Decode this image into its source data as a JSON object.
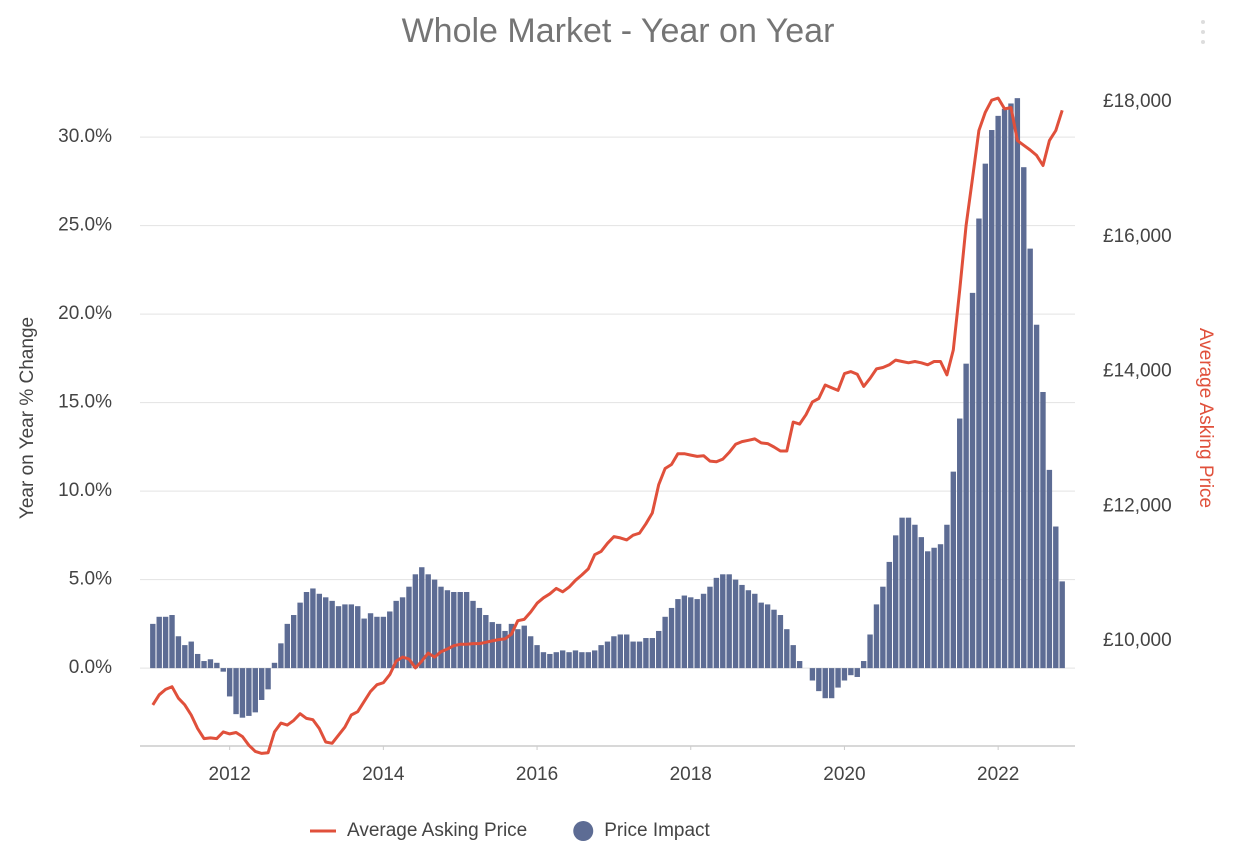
{
  "chart_data": {
    "type": "bar_line",
    "title": "Whole Market - Year on Year",
    "y_label": "Year on Year % Change",
    "y2_label": "Average Asking Price",
    "x": [
      "2011-01",
      "2011-02",
      "2011-03",
      "2011-04",
      "2011-05",
      "2011-06",
      "2011-07",
      "2011-08",
      "2011-09",
      "2011-10",
      "2011-11",
      "2011-12",
      "2012-01",
      "2012-02",
      "2012-03",
      "2012-04",
      "2012-05",
      "2012-06",
      "2012-07",
      "2012-08",
      "2012-09",
      "2012-10",
      "2012-11",
      "2012-12",
      "2013-01",
      "2013-02",
      "2013-03",
      "2013-04",
      "2013-05",
      "2013-06",
      "2013-07",
      "2013-08",
      "2013-09",
      "2013-10",
      "2013-11",
      "2013-12",
      "2014-01",
      "2014-02",
      "2014-03",
      "2014-04",
      "2014-05",
      "2014-06",
      "2014-07",
      "2014-08",
      "2014-09",
      "2014-10",
      "2014-11",
      "2014-12",
      "2015-01",
      "2015-02",
      "2015-03",
      "2015-04",
      "2015-05",
      "2015-06",
      "2015-07",
      "2015-08",
      "2015-09",
      "2015-10",
      "2015-11",
      "2015-12",
      "2016-01",
      "2016-02",
      "2016-03",
      "2016-04",
      "2016-05",
      "2016-06",
      "2016-07",
      "2016-08",
      "2016-09",
      "2016-10",
      "2016-11",
      "2016-12",
      "2017-01",
      "2017-02",
      "2017-03",
      "2017-04",
      "2017-05",
      "2017-06",
      "2017-07",
      "2017-08",
      "2017-09",
      "2017-10",
      "2017-11",
      "2017-12",
      "2018-01",
      "2018-02",
      "2018-03",
      "2018-04",
      "2018-05",
      "2018-06",
      "2018-07",
      "2018-08",
      "2018-09",
      "2018-10",
      "2018-11",
      "2018-12",
      "2019-01",
      "2019-02",
      "2019-03",
      "2019-04",
      "2019-05",
      "2019-06",
      "2019-07",
      "2019-08",
      "2019-09",
      "2019-10",
      "2019-11",
      "2019-12",
      "2020-01",
      "2020-02",
      "2020-03",
      "2020-04",
      "2020-05",
      "2020-06",
      "2020-07",
      "2020-08",
      "2020-09",
      "2020-10",
      "2020-11",
      "2020-12",
      "2021-01",
      "2021-02",
      "2021-03",
      "2021-04",
      "2021-05",
      "2021-06",
      "2021-07",
      "2021-08",
      "2021-09",
      "2021-10",
      "2021-11",
      "2021-12",
      "2022-01",
      "2022-02",
      "2022-03",
      "2022-04",
      "2022-05",
      "2022-06",
      "2022-07",
      "2022-08",
      "2022-09",
      "2022-10",
      "2022-11"
    ],
    "series": [
      {
        "name": "Price Impact",
        "type": "bar",
        "color": "#5d6c94",
        "values": [
          2.5,
          2.9,
          2.9,
          3.0,
          1.8,
          1.3,
          1.5,
          0.8,
          0.4,
          0.5,
          0.3,
          -0.2,
          -1.6,
          -2.6,
          -2.8,
          -2.7,
          -2.5,
          -1.8,
          -1.2,
          0.3,
          1.4,
          2.5,
          3.0,
          3.7,
          4.3,
          4.5,
          4.2,
          4.0,
          3.8,
          3.5,
          3.6,
          3.6,
          3.5,
          2.8,
          3.1,
          2.9,
          2.9,
          3.2,
          3.8,
          4.0,
          4.6,
          5.3,
          5.7,
          5.3,
          5.0,
          4.6,
          4.4,
          4.3,
          4.3,
          4.3,
          3.8,
          3.4,
          3.0,
          2.6,
          2.5,
          2.1,
          2.5,
          2.2,
          2.4,
          1.8,
          1.3,
          0.9,
          0.8,
          0.9,
          1.0,
          0.9,
          1.0,
          0.9,
          0.9,
          1.0,
          1.3,
          1.5,
          1.8,
          1.9,
          1.9,
          1.5,
          1.5,
          1.7,
          1.7,
          2.1,
          2.9,
          3.4,
          3.9,
          4.1,
          4.0,
          3.9,
          4.2,
          4.6,
          5.1,
          5.3,
          5.3,
          5.0,
          4.7,
          4.4,
          4.2,
          3.7,
          3.6,
          3.3,
          3.0,
          2.2,
          1.3,
          0.4,
          0,
          -0.7,
          -1.3,
          -1.7,
          -1.7,
          -1.1,
          -0.7,
          -0.4,
          -0.5,
          0.4,
          1.9,
          3.6,
          4.6,
          6.0,
          7.5,
          8.5,
          8.5,
          8.1,
          7.4,
          6.6,
          6.8,
          7.0,
          8.1,
          11.1,
          14.1,
          17.2,
          21.2,
          25.4,
          28.5,
          30.4,
          31.2,
          31.6,
          31.9,
          32.2,
          28.3,
          23.7,
          19.4,
          15.6,
          11.2,
          8.0,
          4.9
        ]
      },
      {
        "name": "Average Asking Price",
        "type": "line",
        "axis": "y2",
        "color": "#e0503b",
        "values": [
          9050,
          9200,
          9280,
          9320,
          9150,
          9050,
          8900,
          8700,
          8550,
          8560,
          8550,
          8650,
          8620,
          8640,
          8580,
          8450,
          8360,
          8330,
          8340,
          8650,
          8780,
          8750,
          8820,
          8920,
          8850,
          8830,
          8700,
          8500,
          8480,
          8600,
          8720,
          8900,
          8950,
          9100,
          9250,
          9350,
          9380,
          9500,
          9700,
          9760,
          9730,
          9600,
          9700,
          9820,
          9760,
          9840,
          9880,
          9930,
          9950,
          9950,
          9960,
          9960,
          9980,
          10000,
          10020,
          10030,
          10100,
          10300,
          10320,
          10430,
          10560,
          10640,
          10700,
          10780,
          10730,
          10800,
          10900,
          10980,
          11070,
          11280,
          11330,
          11450,
          11550,
          11530,
          11500,
          11570,
          11600,
          11740,
          11900,
          12320,
          12560,
          12620,
          12780,
          12780,
          12760,
          12740,
          12750,
          12670,
          12660,
          12700,
          12800,
          12920,
          12960,
          12980,
          13000,
          12940,
          12930,
          12880,
          12820,
          12820,
          13250,
          13220,
          13360,
          13550,
          13600,
          13800,
          13760,
          13720,
          13970,
          14000,
          13960,
          13780,
          13900,
          14040,
          14060,
          14100,
          14170,
          14150,
          14130,
          14150,
          14130,
          14100,
          14150,
          14150,
          13950,
          14320,
          15210,
          16170,
          16870,
          17580,
          17850,
          18030,
          18060,
          17900,
          17920,
          17430,
          17360,
          17290,
          17210,
          17060,
          17430,
          17580,
          17880
        ]
      }
    ],
    "xlim": [
      "2010-11",
      "2023-01"
    ],
    "xticks": [
      {
        "value": "2012-01",
        "label": "2012"
      },
      {
        "value": "2014-01",
        "label": "2014"
      },
      {
        "value": "2016-01",
        "label": "2016"
      },
      {
        "value": "2018-01",
        "label": "2018"
      },
      {
        "value": "2020-01",
        "label": "2020"
      },
      {
        "value": "2022-01",
        "label": "2022"
      }
    ],
    "ylim": [
      -4.4,
      33
    ],
    "yticks": [
      {
        "value": 0,
        "label": "0.0%"
      },
      {
        "value": 5,
        "label": "5.0%"
      },
      {
        "value": 10,
        "label": "10.0%"
      },
      {
        "value": 15,
        "label": "15.0%"
      },
      {
        "value": 20,
        "label": "20.0%"
      },
      {
        "value": 25,
        "label": "25.0%"
      },
      {
        "value": 30,
        "label": "30.0%"
      }
    ],
    "y2lim": [
      8440,
      18270
    ],
    "y2ticks": [
      {
        "value": 10000,
        "label": "£10,000"
      },
      {
        "value": 12000,
        "label": "£12,000"
      },
      {
        "value": 14000,
        "label": "£14,000"
      },
      {
        "value": 16000,
        "label": "£16,000"
      },
      {
        "value": 18000,
        "label": "£18,000"
      }
    ],
    "grid": true,
    "legend": "bottom"
  }
}
